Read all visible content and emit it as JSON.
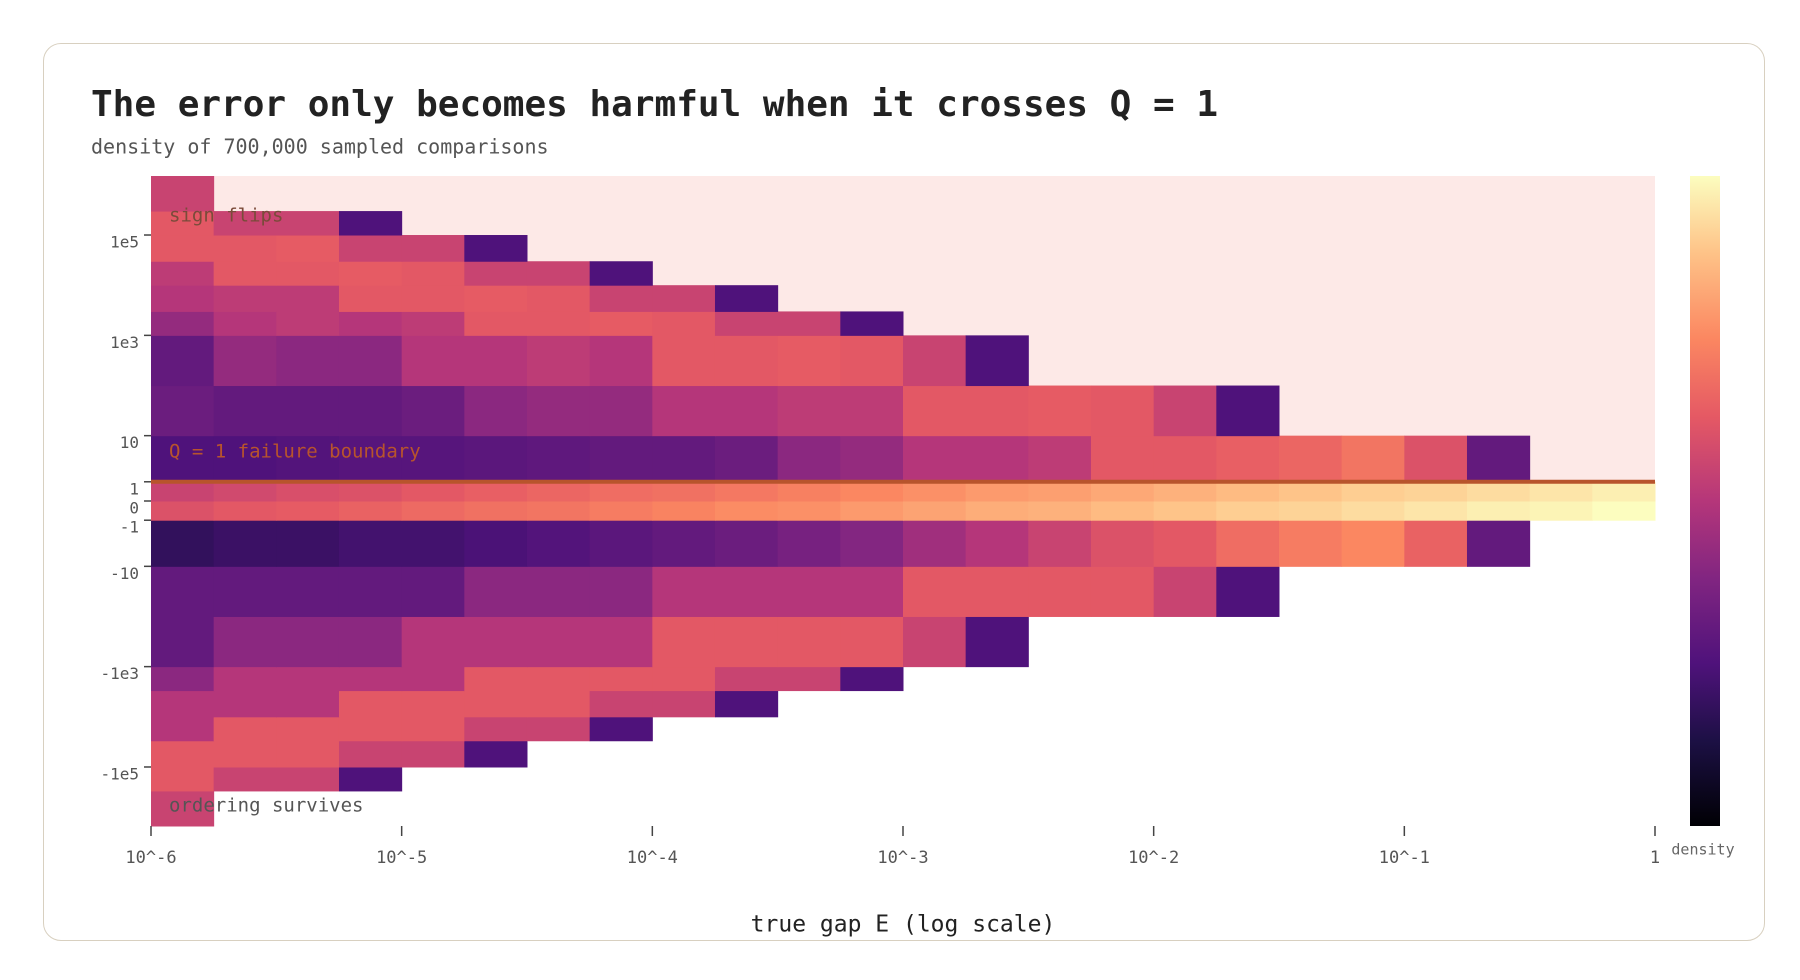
{
  "chart_data": {
    "type": "heatmap",
    "title": "The error only becomes harmful when it crosses Q = 1",
    "subtitle": "density of 700,000 sampled comparisons",
    "x_label": "true gap E (log scale)",
    "colorbar_label": "density",
    "colormap": "magma",
    "x_scale": "log",
    "y_scale": "asinh",
    "xlim": [
      1e-06,
      1
    ],
    "ylim": [
      -1500000,
      1500000
    ],
    "xticks": [
      {
        "value": 1e-06,
        "label": "10^-6"
      },
      {
        "value": 1e-05,
        "label": "10^-5"
      },
      {
        "value": 0.0001,
        "label": "10^-4"
      },
      {
        "value": 0.001,
        "label": "10^-3"
      },
      {
        "value": 0.01,
        "label": "10^-2"
      },
      {
        "value": 0.1,
        "label": "10^-1"
      },
      1
    ],
    "yticks": [
      {
        "value": 100000,
        "label": "1e5"
      },
      {
        "value": 1000,
        "label": "1e3"
      },
      10,
      1,
      0,
      -1,
      -10,
      {
        "value": -1000,
        "label": "-1e3"
      },
      {
        "value": -100000,
        "label": "-1e5"
      }
    ],
    "boundary": 1,
    "boundary_label": "Q = 1  failure boundary",
    "boundary_color": "#b8542c",
    "region_color": "#fde9e7",
    "annotations": [
      "sign flips",
      "ordering survives"
    ],
    "xbins": [
      1e-06,
      1.778e-06,
      3.162e-06,
      5.623e-06,
      1e-05,
      1.778e-05,
      3.162e-05,
      5.623e-05,
      0.0001,
      0.0001778,
      0.0003162,
      0.0005623,
      0.001,
      0.001778,
      0.003162,
      0.005623,
      0.01,
      0.01778,
      0.03162,
      0.05623,
      0.1,
      0.1778,
      0.3162,
      0.5623,
      1
    ],
    "ybins": [
      -1500000,
      -300000,
      -100000,
      -30000,
      -10000,
      -3000,
      -1000,
      -100,
      -10,
      -1,
      0,
      1,
      10,
      100,
      1000,
      3000,
      10000,
      30000,
      100000,
      300000,
      1500000
    ],
    "density": [
      [
        0.55,
        null,
        null,
        null,
        null,
        null,
        null,
        null,
        null,
        null,
        null,
        null,
        null,
        null,
        null,
        null,
        null,
        null,
        null,
        null,
        null,
        null,
        null,
        null
      ],
      [
        0.62,
        0.55,
        0.55,
        0.25,
        null,
        null,
        null,
        null,
        null,
        null,
        null,
        null,
        null,
        null,
        null,
        null,
        null,
        null,
        null,
        null,
        null,
        null,
        null,
        null
      ],
      [
        0.62,
        0.62,
        0.62,
        0.55,
        0.55,
        0.25,
        null,
        null,
        null,
        null,
        null,
        null,
        null,
        null,
        null,
        null,
        null,
        null,
        null,
        null,
        null,
        null,
        null,
        null
      ],
      [
        0.5,
        0.62,
        0.62,
        0.62,
        0.62,
        0.55,
        0.55,
        0.25,
        null,
        null,
        null,
        null,
        null,
        null,
        null,
        null,
        null,
        null,
        null,
        null,
        null,
        null,
        null,
        null
      ],
      [
        0.5,
        0.5,
        0.5,
        0.62,
        0.62,
        0.62,
        0.62,
        0.55,
        0.55,
        0.25,
        null,
        null,
        null,
        null,
        null,
        null,
        null,
        null,
        null,
        null,
        null,
        null,
        null,
        null
      ],
      [
        0.4,
        0.5,
        0.5,
        0.5,
        0.5,
        0.62,
        0.62,
        0.62,
        0.62,
        0.55,
        0.55,
        0.25,
        null,
        null,
        null,
        null,
        null,
        null,
        null,
        null,
        null,
        null,
        null,
        null
      ],
      [
        0.3,
        0.4,
        0.4,
        0.4,
        0.5,
        0.5,
        0.5,
        0.5,
        0.62,
        0.62,
        0.62,
        0.62,
        0.55,
        0.25,
        null,
        null,
        null,
        null,
        null,
        null,
        null,
        null,
        null,
        null
      ],
      [
        0.3,
        0.3,
        0.3,
        0.3,
        0.3,
        0.4,
        0.4,
        0.4,
        0.5,
        0.5,
        0.5,
        0.5,
        0.62,
        0.62,
        0.62,
        0.62,
        0.55,
        0.25,
        null,
        null,
        null,
        null,
        null,
        null
      ],
      [
        0.18,
        0.2,
        0.2,
        0.22,
        0.22,
        0.24,
        0.26,
        0.28,
        0.3,
        0.32,
        0.35,
        0.38,
        0.45,
        0.5,
        0.55,
        0.6,
        0.62,
        0.68,
        0.72,
        0.75,
        0.65,
        0.3,
        null,
        null
      ],
      [
        0.6,
        0.62,
        0.63,
        0.65,
        0.67,
        0.69,
        0.7,
        0.72,
        0.74,
        0.76,
        0.77,
        0.79,
        0.81,
        0.83,
        0.84,
        0.86,
        0.88,
        0.9,
        0.91,
        0.93,
        0.95,
        0.97,
        0.98,
        1.0
      ],
      [
        0.55,
        0.57,
        0.59,
        0.6,
        0.62,
        0.64,
        0.66,
        0.68,
        0.69,
        0.71,
        0.73,
        0.75,
        0.77,
        0.79,
        0.8,
        0.82,
        0.84,
        0.86,
        0.88,
        0.9,
        0.91,
        0.93,
        0.95,
        0.97
      ],
      [
        0.25,
        0.25,
        0.26,
        0.27,
        0.27,
        0.28,
        0.29,
        0.3,
        0.3,
        0.32,
        0.4,
        0.42,
        0.5,
        0.5,
        0.52,
        0.62,
        0.62,
        0.64,
        0.66,
        0.7,
        0.6,
        0.3,
        null,
        null
      ],
      [
        0.32,
        0.3,
        0.3,
        0.3,
        0.32,
        0.4,
        0.42,
        0.42,
        0.5,
        0.5,
        0.52,
        0.52,
        0.62,
        0.62,
        0.63,
        0.62,
        0.55,
        0.25,
        null,
        null,
        null,
        null,
        null,
        null
      ],
      [
        0.3,
        0.42,
        0.4,
        0.4,
        0.5,
        0.5,
        0.52,
        0.5,
        0.62,
        0.62,
        0.63,
        0.62,
        0.55,
        0.25,
        null,
        null,
        null,
        null,
        null,
        null,
        null,
        null,
        null,
        null
      ],
      [
        0.42,
        0.5,
        0.52,
        0.5,
        0.52,
        0.62,
        0.62,
        0.63,
        0.62,
        0.55,
        0.55,
        0.25,
        null,
        null,
        null,
        null,
        null,
        null,
        null,
        null,
        null,
        null,
        null,
        null
      ],
      [
        0.5,
        0.52,
        0.52,
        0.62,
        0.62,
        0.63,
        0.62,
        0.55,
        0.55,
        0.25,
        null,
        null,
        null,
        null,
        null,
        null,
        null,
        null,
        null,
        null,
        null,
        null,
        null,
        null
      ],
      [
        0.52,
        0.62,
        0.62,
        0.63,
        0.62,
        0.55,
        0.55,
        0.25,
        null,
        null,
        null,
        null,
        null,
        null,
        null,
        null,
        null,
        null,
        null,
        null,
        null,
        null,
        null,
        null
      ],
      [
        0.62,
        0.62,
        0.63,
        0.55,
        0.55,
        0.25,
        null,
        null,
        null,
        null,
        null,
        null,
        null,
        null,
        null,
        null,
        null,
        null,
        null,
        null,
        null,
        null,
        null,
        null
      ],
      [
        0.62,
        0.55,
        0.55,
        0.25,
        null,
        null,
        null,
        null,
        null,
        null,
        null,
        null,
        null,
        null,
        null,
        null,
        null,
        null,
        null,
        null,
        null,
        null,
        null,
        null
      ],
      [
        0.55,
        null,
        null,
        null,
        null,
        null,
        null,
        null,
        null,
        null,
        null,
        null,
        null,
        null,
        null,
        null,
        null,
        null,
        null,
        null,
        null,
        null,
        null,
        null
      ]
    ]
  }
}
